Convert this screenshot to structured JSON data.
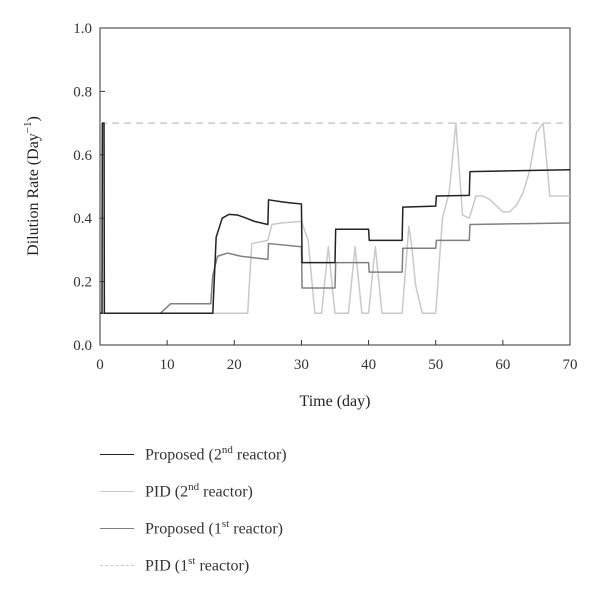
{
  "chart_data": {
    "type": "line",
    "title": "",
    "ylabel": "Dilution Rate (Day",
    "ylabel_sup": "−1",
    "ylabel_close": ")",
    "xlabel": "Time (day)",
    "xlim": [
      0,
      70
    ],
    "ylim": [
      0.0,
      1.0
    ],
    "xticks": [
      0,
      10,
      20,
      30,
      40,
      50,
      60,
      70
    ],
    "yticks": [
      0.0,
      0.2,
      0.4,
      0.6,
      0.8,
      1.0
    ],
    "ytick_labels": [
      "0.0",
      "0.2",
      "0.4",
      "0.6",
      "0.8",
      "1.0"
    ],
    "grid": false,
    "legend_position": "bottom",
    "series": [
      {
        "name": "Proposed (2nd reactor)",
        "label_main": "Proposed (2",
        "label_sup": "nd",
        "label_tail": " reactor)",
        "color": "#222222",
        "dash": "",
        "x": [
          0,
          0.3,
          0.35,
          0.6,
          0.65,
          0.8,
          0.85,
          16.8,
          17.3,
          18.2,
          19.2,
          20.5,
          21.8,
          23,
          25,
          25.1,
          27,
          28.5,
          30,
          30.1,
          35,
          35.1,
          40,
          40.1,
          45,
          45.1,
          50,
          50.1,
          55,
          55.1,
          70
        ],
        "y": [
          0.1,
          0.1,
          0.7,
          0.7,
          0.1,
          0.1,
          0.1,
          0.1,
          0.34,
          0.4,
          0.412,
          0.41,
          0.4,
          0.39,
          0.38,
          0.458,
          0.452,
          0.448,
          0.445,
          0.26,
          0.26,
          0.365,
          0.365,
          0.33,
          0.33,
          0.435,
          0.438,
          0.47,
          0.472,
          0.547,
          0.553
        ]
      },
      {
        "name": "PID (2nd reactor)",
        "label_main": "PID (2",
        "label_sup": "nd",
        "label_tail": " reactor)",
        "color": "#c9c9c9",
        "dash": "",
        "x": [
          0,
          22,
          22.6,
          25,
          25.6,
          27,
          30,
          31,
          32,
          33,
          34,
          35,
          36,
          37,
          38,
          39,
          40,
          41,
          42,
          43,
          44,
          45,
          46,
          46.5,
          47,
          48,
          49,
          50,
          51,
          52,
          53,
          54,
          55,
          56,
          57,
          58,
          59,
          60,
          61,
          62,
          63,
          64,
          65,
          66,
          67,
          68,
          70
        ],
        "y": [
          0.1,
          0.1,
          0.32,
          0.33,
          0.38,
          0.385,
          0.39,
          0.33,
          0.1,
          0.1,
          0.31,
          0.1,
          0.1,
          0.1,
          0.31,
          0.1,
          0.1,
          0.31,
          0.1,
          0.1,
          0.1,
          0.1,
          0.375,
          0.3,
          0.19,
          0.1,
          0.1,
          0.1,
          0.4,
          0.48,
          0.7,
          0.41,
          0.4,
          0.47,
          0.47,
          0.46,
          0.44,
          0.42,
          0.42,
          0.44,
          0.48,
          0.55,
          0.67,
          0.7,
          0.47,
          0.47,
          0.47
        ]
      },
      {
        "name": "Proposed (1st reactor)",
        "label_main": "Proposed (1",
        "label_sup": "st",
        "label_tail": " reactor)",
        "color": "#808080",
        "dash": "",
        "x": [
          0,
          9,
          10.5,
          16.5,
          16.8,
          17.5,
          19,
          21,
          25,
          25.1,
          30,
          30.1,
          35,
          35.1,
          40,
          40.1,
          45,
          45.1,
          50,
          50.1,
          55,
          55.1,
          70
        ],
        "y": [
          0.1,
          0.1,
          0.13,
          0.13,
          0.22,
          0.28,
          0.29,
          0.28,
          0.27,
          0.32,
          0.31,
          0.18,
          0.18,
          0.26,
          0.26,
          0.23,
          0.23,
          0.305,
          0.305,
          0.33,
          0.33,
          0.38,
          0.385
        ]
      },
      {
        "name": "PID (1st reactor)",
        "label_main": "PID (1",
        "label_sup": "st",
        "label_tail": " reactor)",
        "color": "#c9c9c9",
        "dash": "7 5",
        "x": [
          0,
          70
        ],
        "y": [
          0.7,
          0.7
        ]
      }
    ]
  }
}
